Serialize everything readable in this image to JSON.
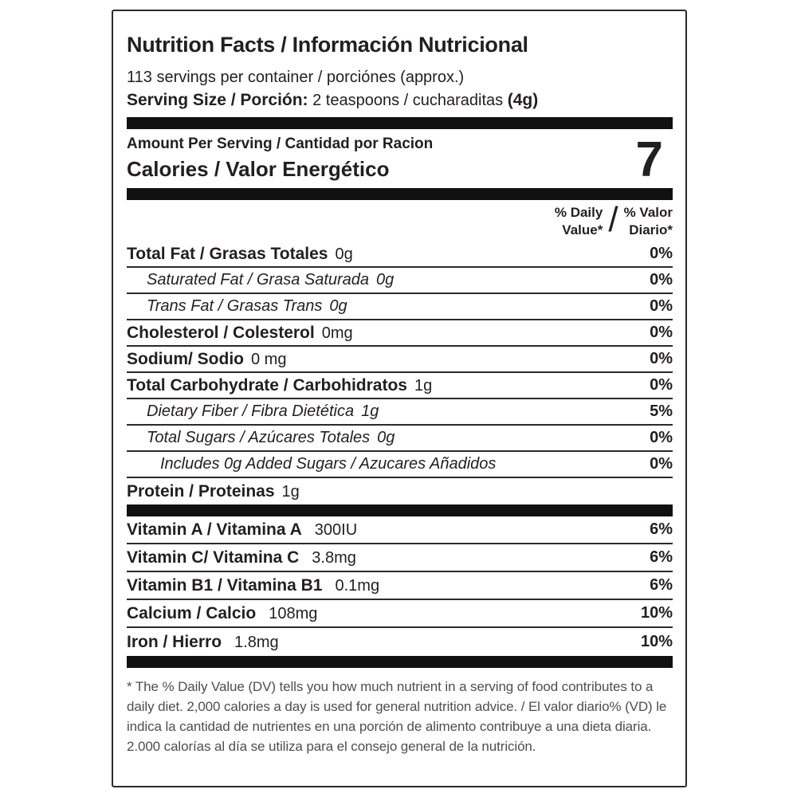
{
  "title": "Nutrition Facts / Información Nutricional",
  "servings_per_container": "113 servings per container / porciónes (approx.)",
  "serving_size": {
    "label": "Serving Size / Porción:",
    "value": "2 teaspoons / cucharaditas",
    "weight": "(4g)"
  },
  "amount_per_serving": "Amount Per Serving / Cantidad por Racion",
  "calories": {
    "label": "Calories / Valor Energético",
    "value": "7"
  },
  "daily_value_header": {
    "en": [
      "% Daily",
      "Value*"
    ],
    "slash": "/",
    "es": [
      "% Valor",
      "Diario*"
    ]
  },
  "nutrients": [
    {
      "label": "Total Fat / Grasas Totales",
      "amount": "0g",
      "dv": "0%"
    },
    {
      "label": "Saturated Fat / Grasa Saturada",
      "amount": "0g",
      "dv": "0%"
    },
    {
      "label": "Trans Fat / Grasas Trans",
      "amount": "0g",
      "dv": "0%"
    },
    {
      "label": "Cholesterol / Colesterol",
      "amount": "0mg",
      "dv": "0%"
    },
    {
      "label": "Sodium/ Sodio",
      "amount": "0 mg",
      "dv": "0%"
    },
    {
      "label": "Total Carbohydrate / Carbohidratos",
      "amount": "1g",
      "dv": "0%"
    },
    {
      "label": "Dietary Fiber / Fibra Dietética",
      "amount": "1g",
      "dv": "5%"
    },
    {
      "label": "Total Sugars / Azúcares Totales",
      "amount": "0g",
      "dv": "0%"
    },
    {
      "label": "Includes 0g Added Sugars / Azucares Añadidos",
      "amount": "",
      "dv": "0%"
    },
    {
      "label": "Protein / Proteinas",
      "amount": "1g",
      "dv": ""
    }
  ],
  "micronutrients": [
    {
      "label": "Vitamin A / Vitamina A",
      "amount": "300IU",
      "dv": "6%"
    },
    {
      "label": "Vitamin C/ Vitamina C",
      "amount": "3.8mg",
      "dv": "6%"
    },
    {
      "label": "Vitamin B1 / Vitamina B1",
      "amount": "0.1mg",
      "dv": "6%"
    },
    {
      "label": "Calcium / Calcio",
      "amount": "108mg",
      "dv": "10%"
    },
    {
      "label": "Iron / Hierro",
      "amount": "1.8mg",
      "dv": "10%"
    }
  ],
  "footnote": "* The % Daily Value (DV) tells you how much nutrient in a serving of food contributes to a daily diet. 2,000 calories a day is used for general nutrition advice. / El valor diario% (VD) le indica la cantidad de nutrientes en una porción de alimento contribuye a una dieta diaria. 2.000 calorías al día se utiliza para el consejo general de la nutrición.",
  "colors": {
    "ink": "#231f20",
    "paper": "#ffffff",
    "bar": "#121010"
  }
}
